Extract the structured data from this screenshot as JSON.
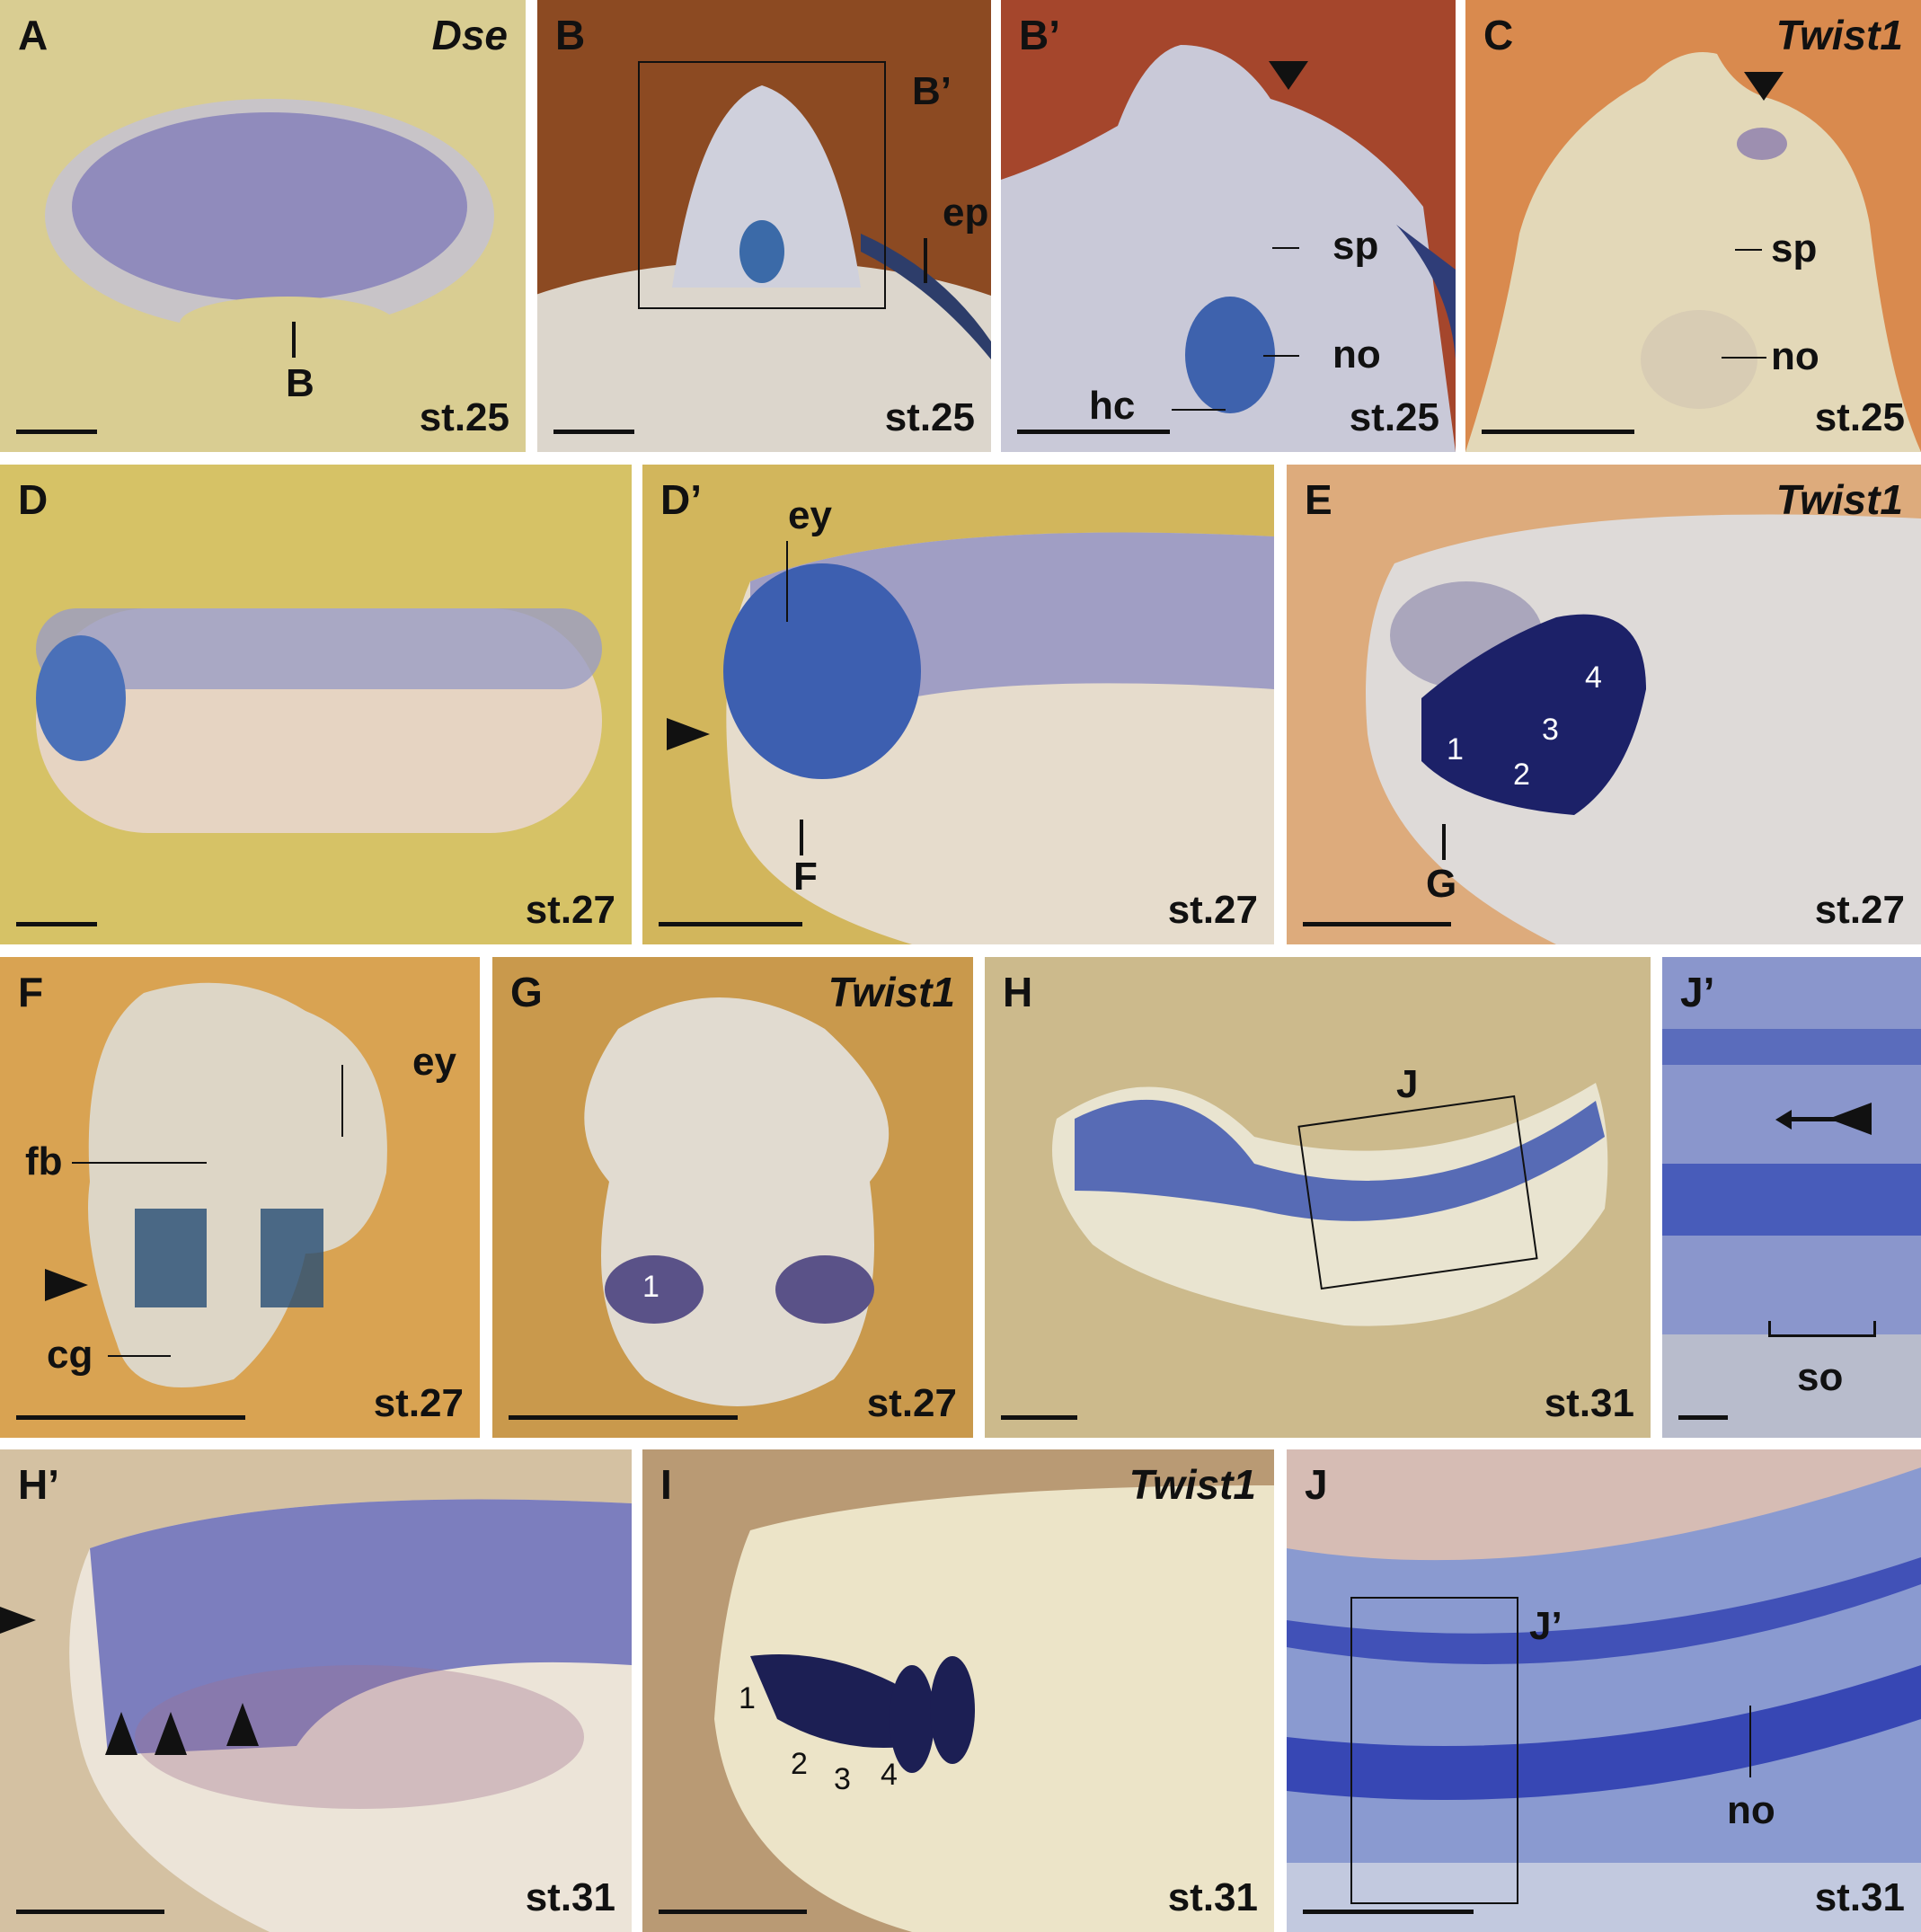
{
  "figure": {
    "panels": [
      {
        "id": "A",
        "letter": "A",
        "gene": "Dse",
        "stage": "st.25",
        "bg": "#d9cd92",
        "annotations": [
          "B"
        ],
        "numbers": []
      },
      {
        "id": "B",
        "letter": "B",
        "gene": "",
        "stage": "st.25",
        "bg": "#8c4a22",
        "annotations": [
          "B’",
          "epi"
        ],
        "numbers": []
      },
      {
        "id": "Bp",
        "letter": "B’",
        "gene": "",
        "stage": "st.25",
        "bg": "#a5462c",
        "annotations": [
          "sp",
          "no",
          "hc"
        ],
        "numbers": []
      },
      {
        "id": "C",
        "letter": "C",
        "gene": "Twist1",
        "stage": "st.25",
        "bg": "#d98a4e",
        "annotations": [
          "sp",
          "no"
        ],
        "numbers": []
      },
      {
        "id": "D",
        "letter": "D",
        "gene": "",
        "stage": "st.27",
        "bg": "#d6c266",
        "annotations": [],
        "numbers": []
      },
      {
        "id": "Dp",
        "letter": "D’",
        "gene": "",
        "stage": "st.27",
        "bg": "#d2b65c",
        "annotations": [
          "ey",
          "F"
        ],
        "numbers": []
      },
      {
        "id": "E",
        "letter": "E",
        "gene": "Twist1",
        "stage": "st.27",
        "bg": "#ddab7c",
        "annotations": [
          "G"
        ],
        "numbers": [
          "1",
          "2",
          "3",
          "4"
        ]
      },
      {
        "id": "F",
        "letter": "F",
        "gene": "",
        "stage": "st.27",
        "bg": "#d9a352",
        "annotations": [
          "ey",
          "fb",
          "cg"
        ],
        "numbers": []
      },
      {
        "id": "G",
        "letter": "G",
        "gene": "Twist1",
        "stage": "st.27",
        "bg": "#c9994c",
        "annotations": [],
        "numbers": [
          "1"
        ]
      },
      {
        "id": "H",
        "letter": "H",
        "gene": "",
        "stage": "st.31",
        "bg": "#ccba8c",
        "annotations": [
          "J"
        ],
        "numbers": []
      },
      {
        "id": "Jp",
        "letter": "J’",
        "gene": "",
        "stage": "",
        "bg": "#8a96cc",
        "annotations": [
          "so"
        ],
        "numbers": []
      },
      {
        "id": "Hp",
        "letter": "H’",
        "gene": "",
        "stage": "st.31",
        "bg": "#d4c1a2",
        "annotations": [],
        "numbers": []
      },
      {
        "id": "I",
        "letter": "I",
        "gene": "Twist1",
        "stage": "st.31",
        "bg": "#b99a74",
        "annotations": [],
        "numbers": [
          "1",
          "2",
          "3",
          "4"
        ]
      },
      {
        "id": "J",
        "letter": "J",
        "gene": "",
        "stage": "st.31",
        "bg": "#d6bcb4",
        "annotations": [
          "J’",
          "no"
        ],
        "numbers": []
      }
    ],
    "colors": {
      "stain": "#3a4aa8",
      "label": "#111111"
    }
  }
}
